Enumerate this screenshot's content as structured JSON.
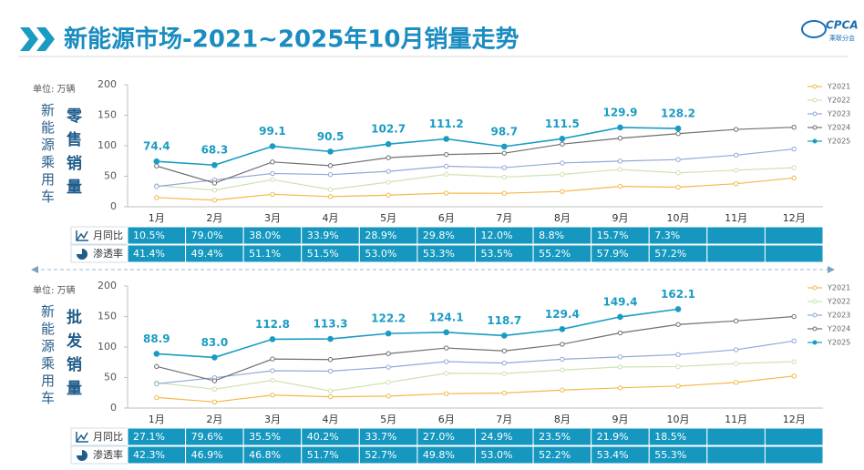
{
  "header": {
    "title": "新能源市场-2021~2025年10月销量走势",
    "logo": "CPCA",
    "logo_sub": "乘联分会"
  },
  "chart_data": [
    {
      "type": "line",
      "unit": "单位: 万辆",
      "side_label": "新能源乘用车",
      "ylabel": "零售销量",
      "categories": [
        "1月",
        "2月",
        "3月",
        "4月",
        "5月",
        "6月",
        "7月",
        "8月",
        "9月",
        "10月",
        "11月",
        "12月"
      ],
      "ylim": [
        0,
        200
      ],
      "yticks": [
        0,
        50,
        100,
        150,
        200
      ],
      "series": [
        {
          "name": "Y2021",
          "color": "#f3b949",
          "values": [
            15.0,
            10.8,
            20.4,
            16.7,
            19.0,
            22.3,
            22.1,
            25.1,
            33.4,
            32.1,
            37.8,
            47.3
          ]
        },
        {
          "name": "Y2022",
          "color": "#cde3b0",
          "values": [
            34.7,
            27.3,
            44.5,
            28.2,
            40.3,
            53.2,
            48.6,
            53.0,
            61.1,
            55.6,
            60.0,
            64.0
          ]
        },
        {
          "name": "Y2023",
          "color": "#8fa9d9",
          "values": [
            33.2,
            43.9,
            54.6,
            52.7,
            58.0,
            66.4,
            64.1,
            71.7,
            74.8,
            77.3,
            84.6,
            94.7
          ]
        },
        {
          "name": "Y2024",
          "color": "#707070",
          "values": [
            66.8,
            38.8,
            73.4,
            67.4,
            80.4,
            85.6,
            87.8,
            102.7,
            112.3,
            119.8,
            126.8,
            130.3
          ]
        },
        {
          "name": "Y2025",
          "color": "#1a9cc2",
          "values": [
            74.4,
            68.3,
            99.1,
            90.5,
            102.7,
            111.2,
            98.7,
            111.5,
            129.9,
            128.2,
            null,
            null
          ],
          "value_labels": [
            "74.4",
            "68.3",
            "99.1",
            "90.5",
            "102.7",
            "111.2",
            "98.7",
            "111.5",
            "129.9",
            "128.2",
            null,
            null
          ]
        }
      ],
      "table": {
        "rows": [
          {
            "label": "月同比",
            "cells": [
              "10.5%",
              "79.0%",
              "38.0%",
              "33.9%",
              "28.9%",
              "29.8%",
              "12.0%",
              "8.8%",
              "15.7%",
              "7.3%",
              null,
              null
            ]
          },
          {
            "label": "渗透率",
            "cells": [
              "41.4%",
              "49.4%",
              "51.1%",
              "51.5%",
              "53.0%",
              "53.3%",
              "53.5%",
              "55.2%",
              "57.9%",
              "57.2%",
              null,
              null
            ]
          }
        ]
      }
    },
    {
      "type": "line",
      "unit": "单位: 万辆",
      "side_label": "新能源乘用车",
      "ylabel": "批发销量",
      "categories": [
        "1月",
        "2月",
        "3月",
        "4月",
        "5月",
        "6月",
        "7月",
        "8月",
        "9月",
        "10月",
        "11月",
        "12月"
      ],
      "ylim": [
        0,
        200
      ],
      "yticks": [
        0,
        50,
        100,
        150,
        200
      ],
      "series": [
        {
          "name": "Y2021",
          "color": "#f3b949",
          "values": [
            17.3,
            10.0,
            21.3,
            18.5,
            19.6,
            23.6,
            24.6,
            29.5,
            33.1,
            36.1,
            42.0,
            52.5
          ]
        },
        {
          "name": "Y2022",
          "color": "#cde3b0",
          "values": [
            41.6,
            30.9,
            45.5,
            28.0,
            42.0,
            57.1,
            56.5,
            62.3,
            67.3,
            68.0,
            73.0,
            76.0
          ]
        },
        {
          "name": "Y2023",
          "color": "#8fa9d9",
          "values": [
            39.8,
            49.7,
            61.2,
            60.5,
            67.0,
            76.1,
            73.7,
            80.0,
            83.8,
            87.6,
            95.6,
            110.0
          ]
        },
        {
          "name": "Y2024",
          "color": "#707070",
          "values": [
            68.2,
            44.7,
            80.4,
            79.5,
            89.2,
            98.4,
            93.7,
            104.6,
            123.1,
            136.9,
            142.8,
            150.0
          ]
        },
        {
          "name": "Y2025",
          "color": "#1a9cc2",
          "values": [
            88.9,
            83.0,
            112.8,
            113.3,
            122.2,
            124.1,
            118.7,
            129.4,
            149.4,
            162.1,
            null,
            null
          ],
          "value_labels": [
            "88.9",
            "83.0",
            "112.8",
            "113.3",
            "122.2",
            "124.1",
            "118.7",
            "129.4",
            "149.4",
            "162.1",
            null,
            null
          ]
        }
      ],
      "table": {
        "rows": [
          {
            "label": "月同比",
            "cells": [
              "27.1%",
              "79.6%",
              "35.5%",
              "40.2%",
              "33.7%",
              "27.0%",
              "24.9%",
              "23.5%",
              "21.9%",
              "18.5%",
              null,
              null
            ]
          },
          {
            "label": "渗透率",
            "cells": [
              "42.3%",
              "46.9%",
              "46.8%",
              "51.7%",
              "52.7%",
              "49.8%",
              "53.0%",
              "52.2%",
              "53.4%",
              "55.3%",
              null,
              null
            ]
          }
        ]
      }
    }
  ]
}
